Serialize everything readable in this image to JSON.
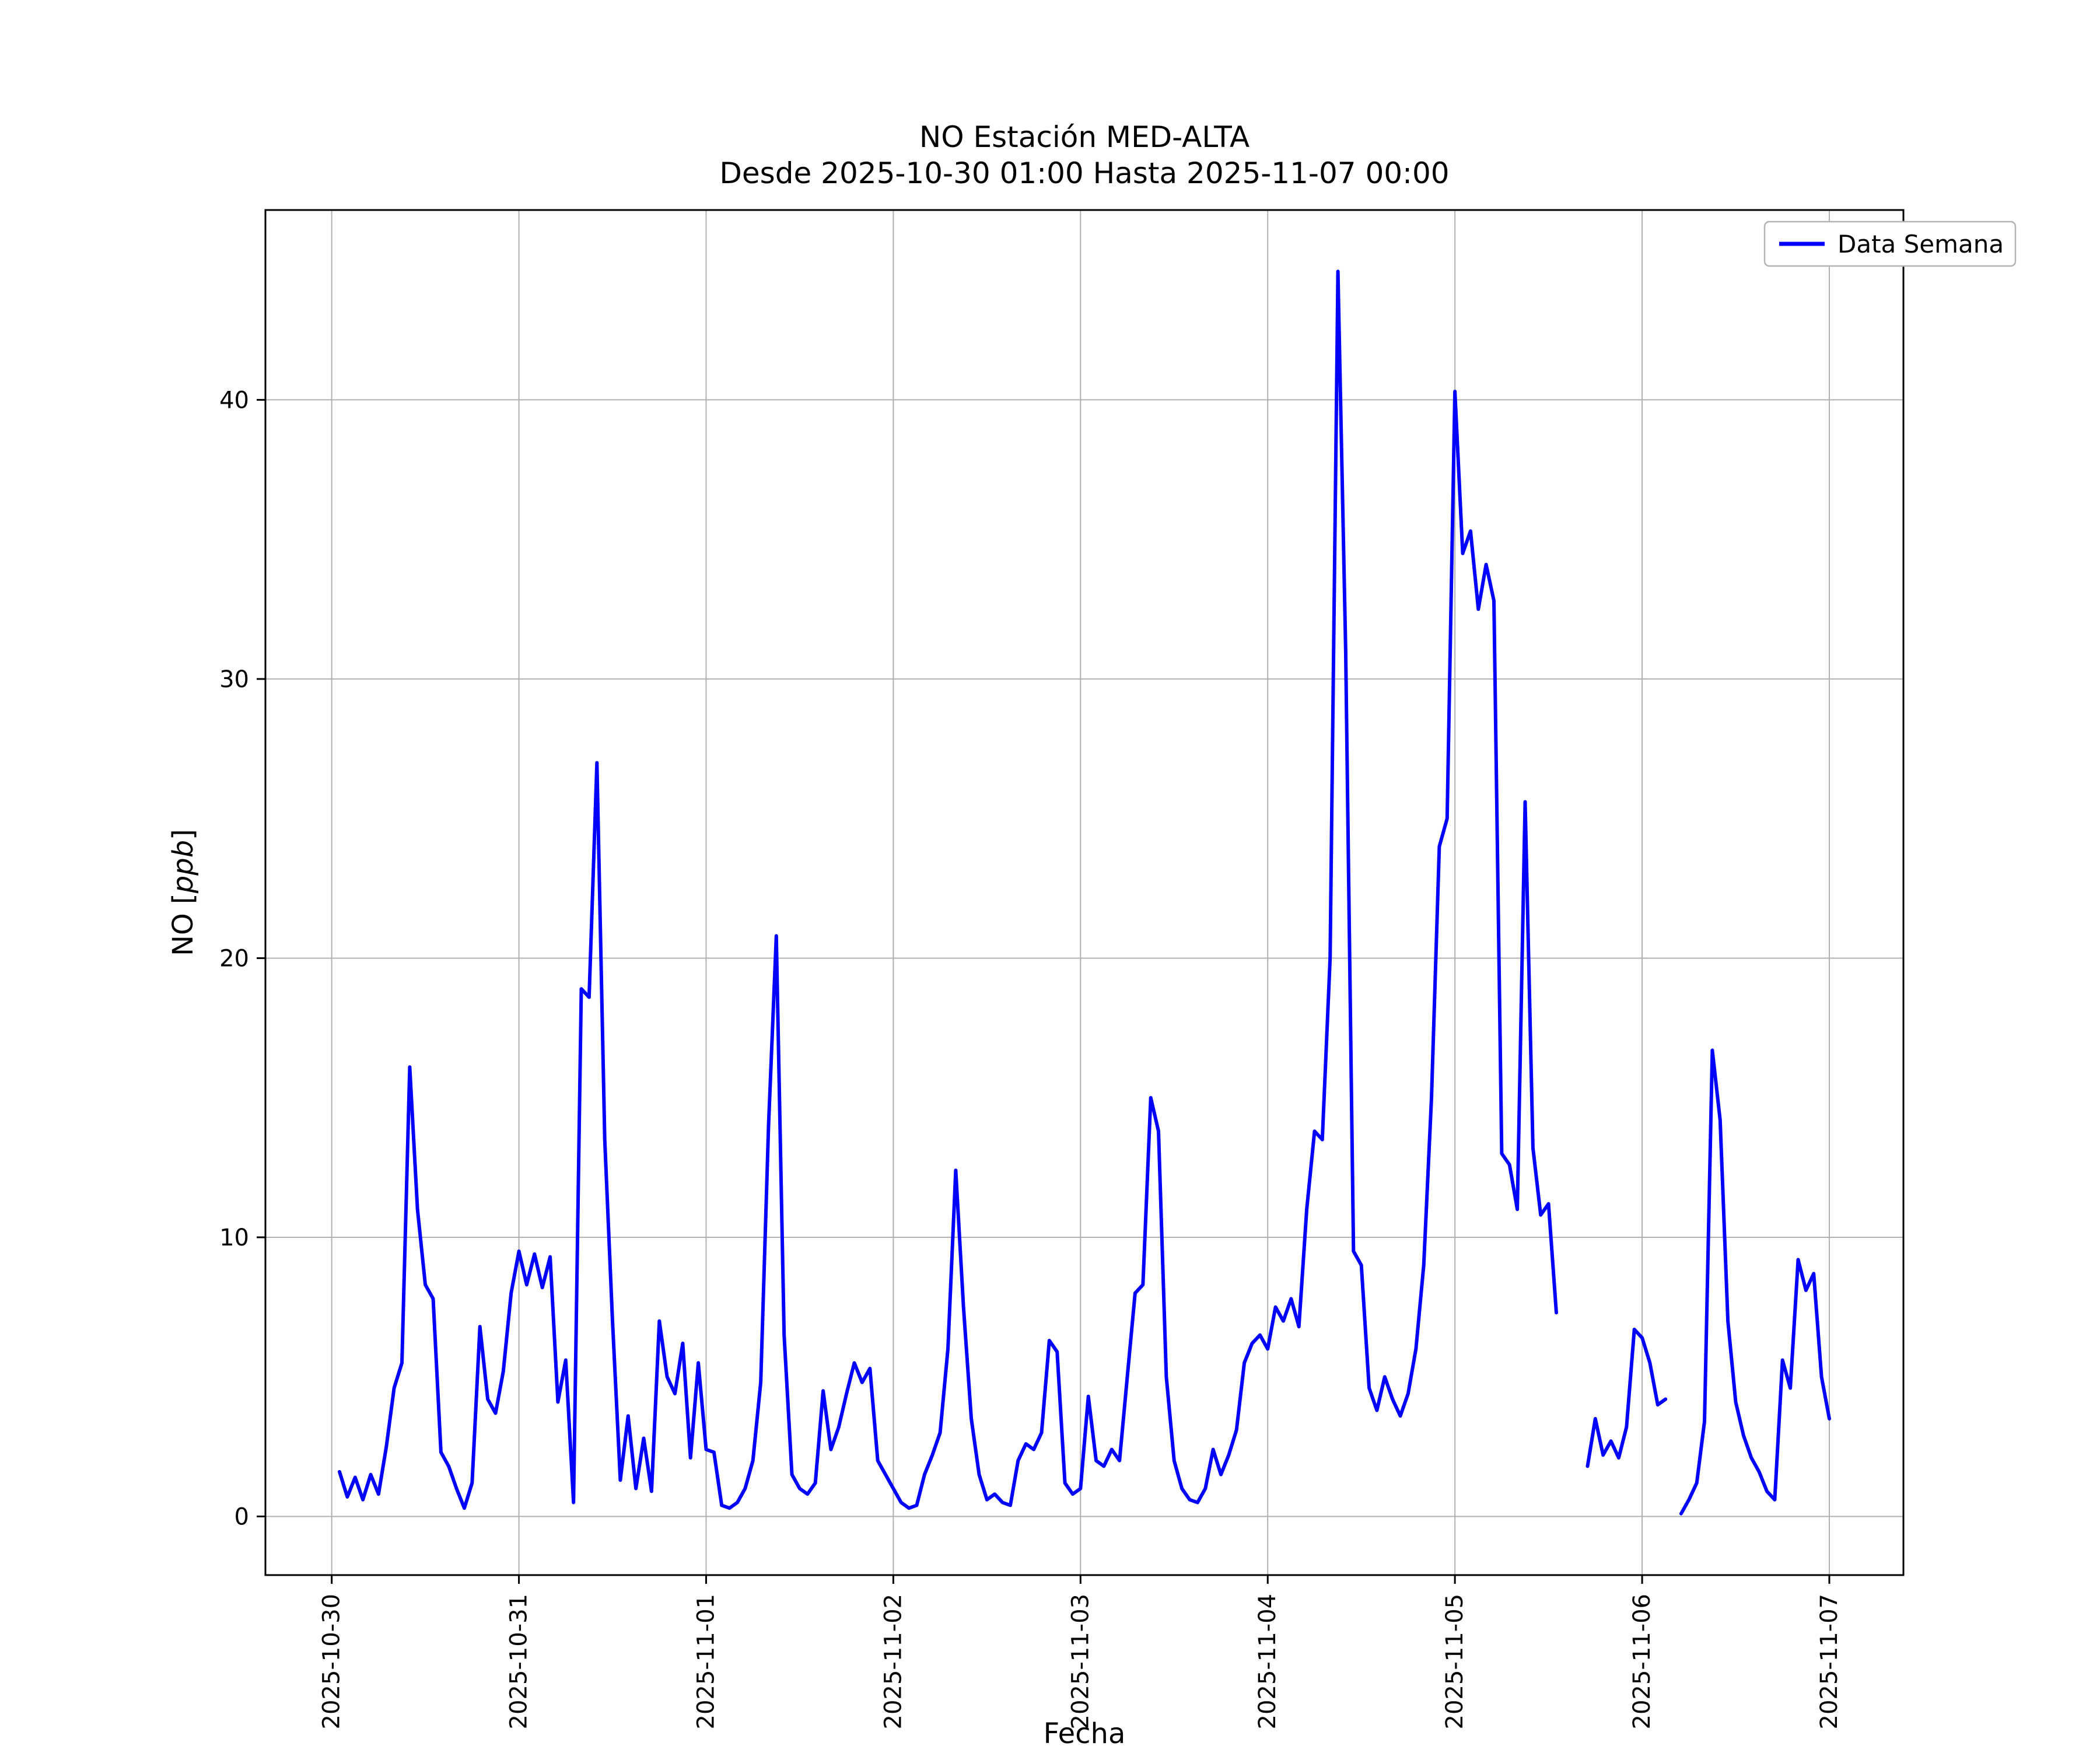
{
  "chart_data": {
    "type": "line",
    "title": "NO Estación MED-ALTA",
    "subtitle": "Desde 2025-10-30 01:00 Hasta 2025-11-07 00:00",
    "xlabel": "Fecha",
    "ylabel": "NO [ppb]",
    "grid": true,
    "grid_color": "#b0b0b0",
    "legend": {
      "label": "Data Semana",
      "position": "upper right"
    },
    "x_axis": {
      "lim": [
        -8.5,
        201.5
      ],
      "unit": "hours since 2025-10-30 00:00",
      "tick_positions_hours": [
        0,
        24,
        48,
        72,
        96,
        120,
        144,
        168,
        192
      ],
      "tick_labels": [
        "2025-10-30",
        "2025-10-31",
        "2025-11-01",
        "2025-11-02",
        "2025-11-03",
        "2025-11-04",
        "2025-11-05",
        "2025-11-06",
        "2025-11-07"
      ]
    },
    "y_axis": {
      "lim": [
        -2.1,
        46.8
      ],
      "ticks": [
        0,
        10,
        20,
        30,
        40
      ]
    },
    "series": [
      {
        "name": "Data Semana",
        "color": "#0000ff",
        "x_start_hour": 1,
        "x_step_hours": 1,
        "values": [
          1.6,
          0.7,
          1.4,
          0.6,
          1.5,
          0.8,
          2.5,
          4.6,
          5.5,
          16.1,
          11.0,
          8.3,
          7.8,
          2.3,
          1.8,
          1.0,
          0.3,
          1.2,
          6.8,
          4.2,
          3.7,
          5.2,
          8.0,
          9.5,
          8.3,
          9.4,
          8.2,
          9.3,
          4.1,
          5.6,
          0.5,
          18.9,
          18.6,
          27.0,
          13.5,
          7.0,
          1.3,
          3.6,
          1.0,
          2.8,
          0.9,
          7.0,
          5.0,
          4.4,
          6.2,
          2.1,
          5.5,
          2.4,
          2.3,
          0.4,
          0.3,
          0.5,
          1.0,
          2.0,
          4.8,
          14.0,
          20.8,
          6.5,
          1.5,
          1.0,
          0.8,
          1.2,
          4.5,
          2.4,
          3.2,
          4.4,
          5.5,
          4.8,
          5.3,
          2.0,
          1.5,
          1.0,
          0.5,
          0.3,
          0.4,
          1.5,
          2.2,
          3.0,
          6.0,
          12.4,
          7.5,
          3.5,
          1.5,
          0.6,
          0.8,
          0.5,
          0.4,
          2.0,
          2.6,
          2.4,
          3.0,
          6.3,
          5.9,
          1.2,
          0.8,
          1.0,
          4.3,
          2.0,
          1.8,
          2.4,
          2.0,
          5.0,
          8.0,
          8.3,
          15.0,
          13.8,
          5.0,
          2.0,
          1.0,
          0.6,
          0.5,
          1.0,
          2.4,
          1.5,
          2.2,
          3.1,
          5.5,
          6.2,
          6.5,
          6.0,
          7.5,
          7.0,
          7.8,
          6.8,
          11.0,
          13.8,
          13.5,
          20.0,
          44.6,
          31.0,
          9.5,
          9.0,
          4.6,
          3.8,
          5.0,
          4.2,
          3.6,
          4.4,
          6.0,
          9.0,
          15.0,
          24.0,
          25.0,
          40.3,
          34.5,
          35.3,
          32.5,
          34.1,
          32.8,
          13.0,
          12.6,
          11.0,
          25.6,
          13.2,
          10.8,
          11.2,
          7.3,
          null,
          null,
          null,
          1.8,
          3.5,
          2.2,
          2.7,
          2.1,
          3.2,
          6.7,
          6.4,
          5.5,
          4.0,
          4.2,
          null,
          0.1,
          0.6,
          1.2,
          3.4,
          16.7,
          14.2,
          7.0,
          4.1,
          2.9,
          2.1,
          1.6,
          0.9,
          0.6,
          5.6,
          4.6,
          9.2,
          8.1,
          8.7,
          5.0,
          3.5
        ]
      }
    ]
  }
}
